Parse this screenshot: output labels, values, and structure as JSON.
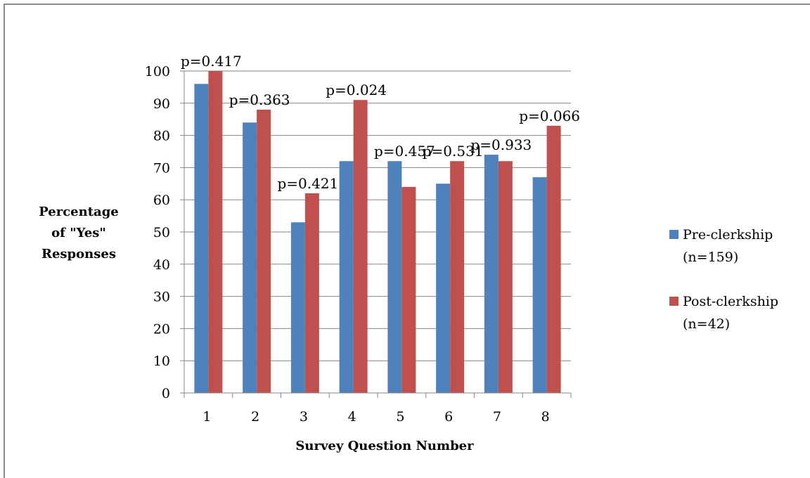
{
  "chart_data": {
    "type": "bar",
    "title": "",
    "xlabel": "Survey Question Number",
    "ylabel_lines": [
      "Percentage",
      "of \"Yes\"",
      "Responses"
    ],
    "categories": [
      "1",
      "2",
      "3",
      "4",
      "5",
      "6",
      "7",
      "8"
    ],
    "ylim": [
      0,
      100
    ],
    "yticks": [
      0,
      10,
      20,
      30,
      40,
      50,
      60,
      70,
      80,
      90,
      100
    ],
    "grid": true,
    "legend_position": "right",
    "series": [
      {
        "name_lines": [
          "Pre-clerkship",
          "(n=159)"
        ],
        "color": "#4f81bd",
        "values": [
          96,
          84,
          53,
          72,
          72,
          65,
          74,
          67
        ]
      },
      {
        "name_lines": [
          "Post-clerkship",
          "(n=42)"
        ],
        "color": "#c0504d",
        "values": [
          100,
          88,
          62,
          91,
          64,
          72,
          72,
          83
        ]
      }
    ],
    "annotations": [
      {
        "category": "1",
        "text": "p=0.417"
      },
      {
        "category": "2",
        "text": "p=0.363"
      },
      {
        "category": "3",
        "text": "p=0.421"
      },
      {
        "category": "4",
        "text": "p=0.024"
      },
      {
        "category": "5",
        "text": "p=0.457"
      },
      {
        "category": "6",
        "text": "p=0.531"
      },
      {
        "category": "7",
        "text": "p=0.933"
      },
      {
        "category": "8",
        "text": "p=0.066"
      }
    ]
  }
}
